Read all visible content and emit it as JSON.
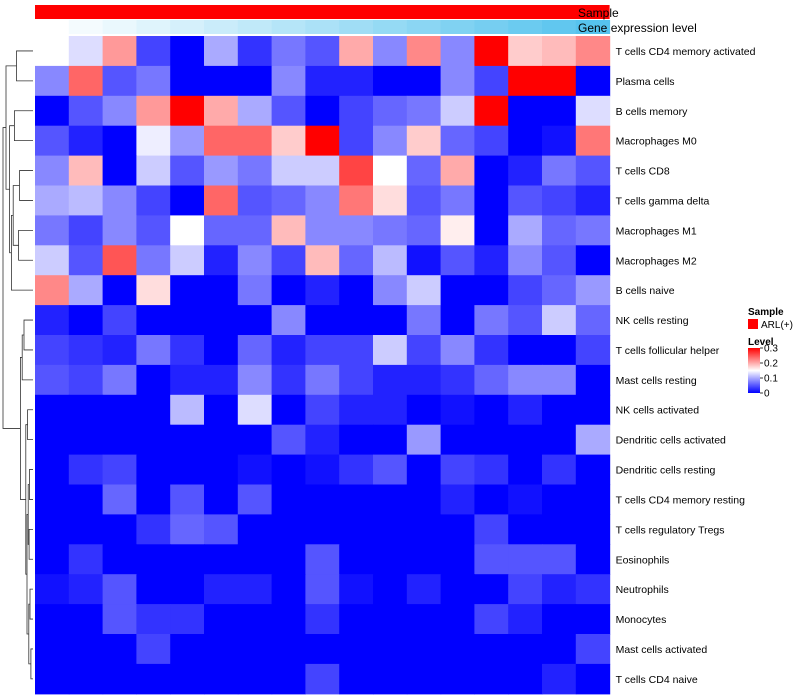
{
  "chart_data": {
    "type": "heatmap",
    "title": "",
    "annotations": [
      {
        "name": "Sample",
        "color": "#ff0000"
      },
      {
        "name": "Gene expression level",
        "gradient": [
          "#ffffff",
          "#56c3ee"
        ]
      }
    ],
    "rows": [
      "T cells CD4 memory activated",
      "Plasma cells",
      "B cells memory",
      "Macrophages M0",
      "T cells CD8",
      "T cells gamma delta",
      "Macrophages M1",
      "Macrophages M2",
      "B cells naive",
      "NK cells resting",
      "T cells follicular helper",
      "Mast cells resting",
      "NK cells activated",
      "Dendritic cells activated",
      "Dendritic cells resting",
      "T cells CD4 memory resting",
      "T cells regulatory  Tregs",
      "Eosinophils",
      "Neutrophils",
      "Monocytes",
      "Mast cells activated",
      "T cells CD4 naive"
    ],
    "n_columns": 17,
    "values": [
      [
        0.15,
        0.13,
        0.21,
        0.04,
        0.0,
        0.1,
        0.03,
        0.07,
        0.05,
        0.2,
        0.08,
        0.22,
        0.08,
        0.3,
        0.18,
        0.19,
        0.22
      ],
      [
        0.08,
        0.24,
        0.05,
        0.07,
        0.0,
        0.0,
        0.0,
        0.08,
        0.02,
        0.02,
        0.0,
        0.0,
        0.08,
        0.04,
        0.3,
        0.3,
        0.0
      ],
      [
        0.0,
        0.05,
        0.08,
        0.21,
        0.3,
        0.2,
        0.1,
        0.05,
        0.0,
        0.04,
        0.06,
        0.07,
        0.12,
        0.3,
        0.0,
        0.0,
        0.13
      ],
      [
        0.05,
        0.02,
        0.0,
        0.14,
        0.09,
        0.24,
        0.24,
        0.18,
        0.3,
        0.04,
        0.08,
        0.18,
        0.06,
        0.04,
        0.0,
        0.01,
        0.23
      ],
      [
        0.08,
        0.19,
        0.0,
        0.12,
        0.05,
        0.09,
        0.07,
        0.12,
        0.12,
        0.26,
        0.15,
        0.06,
        0.2,
        0.0,
        0.02,
        0.07,
        0.05
      ],
      [
        0.1,
        0.11,
        0.08,
        0.04,
        0.0,
        0.24,
        0.05,
        0.06,
        0.08,
        0.23,
        0.17,
        0.05,
        0.07,
        0.0,
        0.05,
        0.04,
        0.02
      ],
      [
        0.07,
        0.04,
        0.08,
        0.05,
        0.15,
        0.06,
        0.06,
        0.19,
        0.08,
        0.08,
        0.07,
        0.06,
        0.16,
        0.0,
        0.1,
        0.06,
        0.07
      ],
      [
        0.12,
        0.05,
        0.25,
        0.07,
        0.12,
        0.02,
        0.08,
        0.04,
        0.19,
        0.06,
        0.11,
        0.01,
        0.05,
        0.02,
        0.08,
        0.05,
        0.0
      ],
      [
        0.22,
        0.1,
        0.0,
        0.17,
        0.0,
        0.0,
        0.07,
        0.0,
        0.02,
        0.0,
        0.08,
        0.12,
        0.0,
        0.0,
        0.04,
        0.06,
        0.09
      ],
      [
        0.02,
        0.0,
        0.04,
        0.0,
        0.0,
        0.0,
        0.0,
        0.08,
        0.0,
        0.0,
        0.0,
        0.07,
        0.0,
        0.07,
        0.05,
        0.12,
        0.06
      ],
      [
        0.04,
        0.03,
        0.02,
        0.07,
        0.03,
        0.0,
        0.06,
        0.02,
        0.04,
        0.04,
        0.12,
        0.04,
        0.08,
        0.03,
        0.0,
        0.0,
        0.04
      ],
      [
        0.05,
        0.04,
        0.07,
        0.0,
        0.02,
        0.02,
        0.08,
        0.03,
        0.07,
        0.04,
        0.02,
        0.02,
        0.03,
        0.06,
        0.08,
        0.08,
        0.0
      ],
      [
        0.0,
        0.0,
        0.0,
        0.0,
        0.11,
        0.0,
        0.13,
        0.0,
        0.04,
        0.02,
        0.02,
        0.0,
        0.01,
        0.0,
        0.02,
        0.0,
        0.0
      ],
      [
        0.0,
        0.0,
        0.0,
        0.0,
        0.0,
        0.0,
        0.0,
        0.05,
        0.02,
        0.0,
        0.0,
        0.09,
        0.0,
        0.0,
        0.0,
        0.0,
        0.1
      ],
      [
        0.0,
        0.03,
        0.04,
        0.0,
        0.0,
        0.0,
        0.01,
        0.0,
        0.01,
        0.03,
        0.05,
        0.0,
        0.04,
        0.03,
        0.0,
        0.03,
        0.0
      ],
      [
        0.0,
        0.0,
        0.06,
        0.0,
        0.05,
        0.0,
        0.05,
        0.0,
        0.0,
        0.0,
        0.0,
        0.0,
        0.02,
        0.0,
        0.01,
        0.0,
        0.0
      ],
      [
        0.0,
        0.0,
        0.0,
        0.03,
        0.06,
        0.05,
        0.0,
        0.0,
        0.0,
        0.0,
        0.0,
        0.0,
        0.0,
        0.04,
        0.0,
        0.0,
        0.0
      ],
      [
        0.0,
        0.03,
        0.0,
        0.0,
        0.0,
        0.0,
        0.0,
        0.0,
        0.05,
        0.0,
        0.0,
        0.0,
        0.0,
        0.05,
        0.05,
        0.05,
        0.0
      ],
      [
        0.01,
        0.02,
        0.05,
        0.0,
        0.0,
        0.02,
        0.02,
        0.0,
        0.05,
        0.01,
        0.0,
        0.02,
        0.0,
        0.0,
        0.04,
        0.02,
        0.03
      ],
      [
        0.0,
        0.0,
        0.05,
        0.03,
        0.03,
        0.0,
        0.0,
        0.0,
        0.03,
        0.0,
        0.0,
        0.0,
        0.0,
        0.04,
        0.02,
        0.0,
        0.0
      ],
      [
        0.0,
        0.0,
        0.0,
        0.04,
        0.0,
        0.0,
        0.0,
        0.0,
        0.0,
        0.0,
        0.0,
        0.0,
        0.0,
        0.0,
        0.0,
        0.0,
        0.04
      ],
      [
        0.0,
        0.0,
        0.0,
        0.0,
        0.0,
        0.0,
        0.0,
        0.0,
        0.04,
        0.0,
        0.0,
        0.0,
        0.0,
        0.0,
        0.0,
        0.02,
        0.0
      ]
    ],
    "color_scale": {
      "min": 0,
      "mid": 0.15,
      "max": 0.3,
      "low_color": "#0000ff",
      "mid_color": "#ffffff",
      "high_color": "#ff0000"
    },
    "legend": {
      "sample_title": "Sample",
      "sample_label": "ARL(+)",
      "sample_color": "#ff0000",
      "level_title": "Level",
      "ticks": [
        "0.3",
        "0.2",
        "0.1",
        "0"
      ],
      "tick_values": [
        0.3,
        0.2,
        0.1,
        0
      ]
    },
    "dendrogram": "row clustering dendrogram on left"
  }
}
